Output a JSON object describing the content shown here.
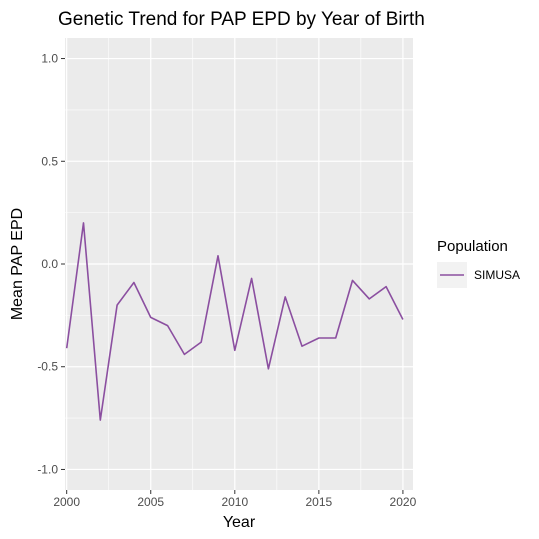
{
  "chart_data": {
    "type": "line",
    "title": "Genetic Trend for PAP EPD by Year of Birth",
    "xlabel": "Year",
    "ylabel": "Mean PAP EPD",
    "xlim": [
      1999.9,
      2020.6
    ],
    "ylim": [
      -1.1,
      1.1
    ],
    "x_ticks": [
      2000,
      2005,
      2010,
      2015,
      2020
    ],
    "x_tick_labels": [
      "2000",
      "2005",
      "2010",
      "2015",
      "2020"
    ],
    "y_ticks": [
      1.0,
      0.5,
      0.0,
      -0.5,
      -1.0
    ],
    "y_tick_labels": [
      "1.0",
      "0.5",
      "0.0",
      "-0.5",
      "-1.0"
    ],
    "grid": true,
    "legend": {
      "title": "Population",
      "placement": "right"
    },
    "series": [
      {
        "name": "SIMUSA",
        "color": "#8b4fa0",
        "x": [
          2000,
          2001,
          2002,
          2003,
          2004,
          2005,
          2006,
          2007,
          2008,
          2009,
          2010,
          2011,
          2012,
          2013,
          2014,
          2015,
          2016,
          2017,
          2018,
          2019,
          2020
        ],
        "y": [
          -0.41,
          0.2,
          -0.76,
          -0.2,
          -0.09,
          -0.26,
          -0.3,
          -0.44,
          -0.38,
          0.04,
          -0.42,
          -0.07,
          -0.51,
          -0.16,
          -0.4,
          -0.36,
          -0.36,
          -0.08,
          -0.17,
          -0.11,
          -0.27
        ]
      }
    ]
  }
}
